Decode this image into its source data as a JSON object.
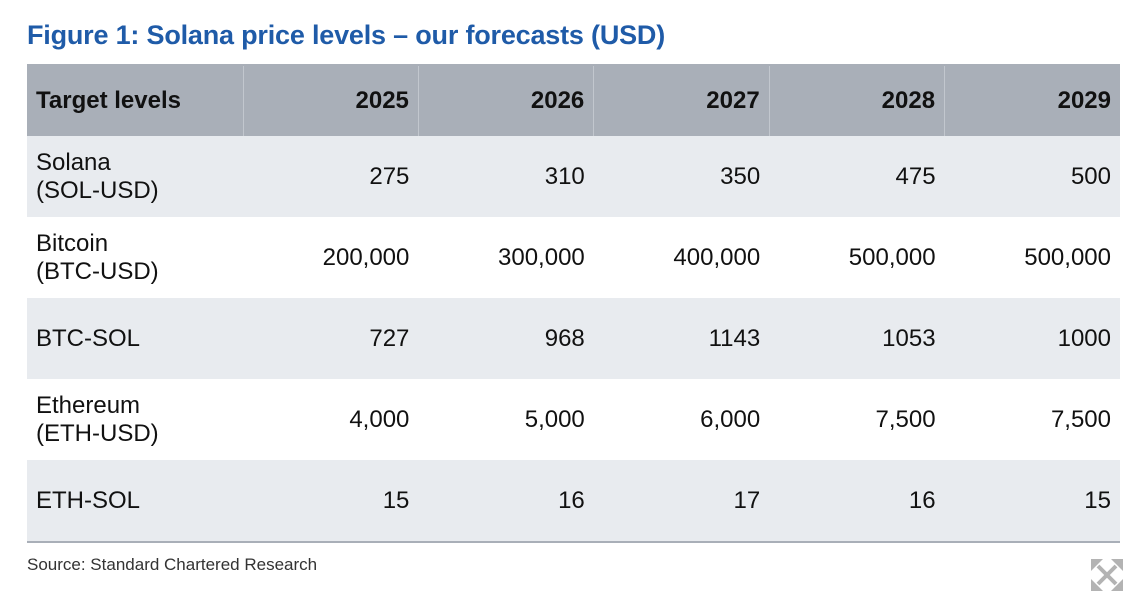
{
  "title": "Figure 1: Solana price levels – our forecasts (USD)",
  "source": "Source: Standard Chartered Research",
  "expand_icon": "expand-arrows-icon",
  "colors": {
    "title": "#1f5ba8",
    "header_bg": "#a9afb8",
    "stripe_bg": "#e8ebef"
  },
  "chart_data": {
    "type": "table",
    "title": "Figure 1: Solana price levels – our forecasts (USD)",
    "columns": [
      "Target levels",
      "2025",
      "2026",
      "2027",
      "2028",
      "2029"
    ],
    "rows": [
      {
        "label_line1": "Solana",
        "label_line2": "(SOL-USD)",
        "values": [
          "275",
          "310",
          "350",
          "475",
          "500"
        ]
      },
      {
        "label_line1": "Bitcoin",
        "label_line2": "(BTC-USD)",
        "values": [
          "200,000",
          "300,000",
          "400,000",
          "500,000",
          "500,000"
        ]
      },
      {
        "label_line1": "BTC-SOL",
        "label_line2": "",
        "values": [
          "727",
          "968",
          "1143",
          "1053",
          "1000"
        ]
      },
      {
        "label_line1": "Ethereum",
        "label_line2": "(ETH-USD)",
        "values": [
          "4,000",
          "5,000",
          "6,000",
          "7,500",
          "7,500"
        ]
      },
      {
        "label_line1": "ETH-SOL",
        "label_line2": "",
        "values": [
          "15",
          "16",
          "17",
          "16",
          "15"
        ]
      }
    ]
  }
}
